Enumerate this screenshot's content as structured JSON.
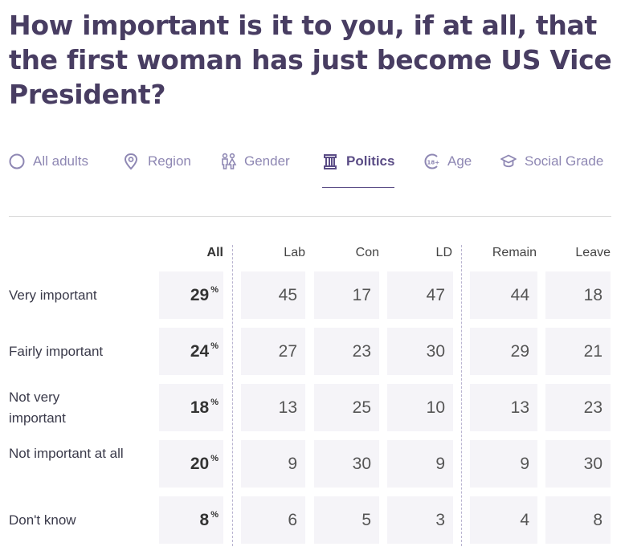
{
  "title": "How important is it to you, if at all, that the first woman has just become US Vice President?",
  "tabs": [
    {
      "label": "All adults",
      "icon": "circle-icon",
      "active": false
    },
    {
      "label": "Region",
      "icon": "location-pin-icon",
      "active": false
    },
    {
      "label": "Gender",
      "icon": "gender-icon",
      "active": false
    },
    {
      "label": "Politics",
      "icon": "politics-icon",
      "active": true
    },
    {
      "label": "Age",
      "icon": "age-icon",
      "active": false
    },
    {
      "label": "Social Grade",
      "icon": "graduation-cap-icon",
      "active": false
    }
  ],
  "table": {
    "columns": [
      "All",
      "Lab",
      "Con",
      "LD",
      "Remain",
      "Leave"
    ],
    "percent_symbol": "%",
    "rows": [
      {
        "label": "Very important",
        "all": "29",
        "values": [
          "45",
          "17",
          "47",
          "44",
          "18"
        ]
      },
      {
        "label": "Fairly important",
        "all": "24",
        "values": [
          "27",
          "23",
          "30",
          "29",
          "21"
        ]
      },
      {
        "label": "Not very important",
        "all": "18",
        "values": [
          "13",
          "25",
          "10",
          "13",
          "23"
        ]
      },
      {
        "label": "Not important at all",
        "all": "20",
        "values": [
          "9",
          "30",
          "9",
          "9",
          "30"
        ]
      },
      {
        "label": "Don't know",
        "all": "8",
        "values": [
          "6",
          "5",
          "3",
          "4",
          "8"
        ]
      }
    ]
  },
  "colors": {
    "title": "#483d62",
    "tab": "#8e87b3",
    "tab_active": "#5b4d86",
    "cell_bg": "#f5f4f8"
  }
}
